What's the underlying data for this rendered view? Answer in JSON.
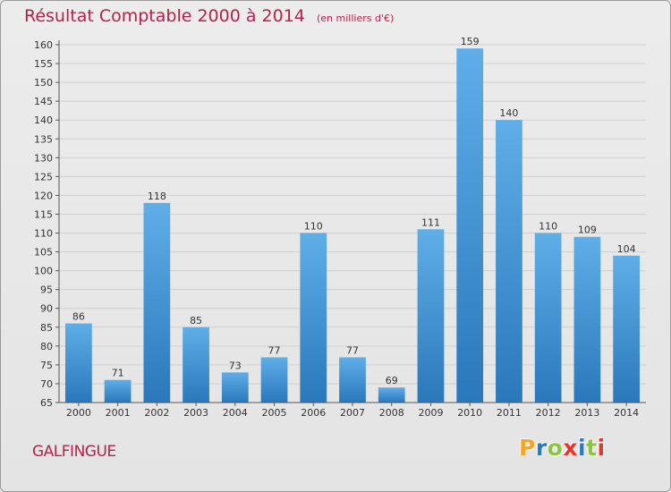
{
  "header": {
    "title": "Résultat Comptable 2000 à 2014",
    "subtitle": "(en milliers d'€)"
  },
  "footer": {
    "commune": "GALFINGUE",
    "logo_text": "Proxiti",
    "logo_colors": [
      "#f5a623",
      "#2a7ac0",
      "#8cc63f",
      "#e5352c",
      "#2a7ac0",
      "#8cc63f",
      "#e5352c"
    ]
  },
  "chart_data": {
    "type": "bar",
    "title": "Résultat Comptable 2000 à 2014",
    "subtitle": "(en milliers d'€)",
    "categories": [
      "2000",
      "2001",
      "2002",
      "2003",
      "2004",
      "2005",
      "2006",
      "2007",
      "2008",
      "2009",
      "2010",
      "2011",
      "2012",
      "2013",
      "2014"
    ],
    "values": [
      86,
      71,
      118,
      85,
      73,
      77,
      110,
      77,
      69,
      111,
      159,
      140,
      110,
      109,
      104
    ],
    "ylim": [
      65,
      160
    ],
    "ytick_step": 5,
    "grid": true,
    "data_labels": true,
    "colors": {
      "bar_light": "#5faee8",
      "bar_dark": "#2a78bb",
      "grid": "#cfcfcf",
      "axis": "#555555",
      "text": "#333333"
    }
  }
}
